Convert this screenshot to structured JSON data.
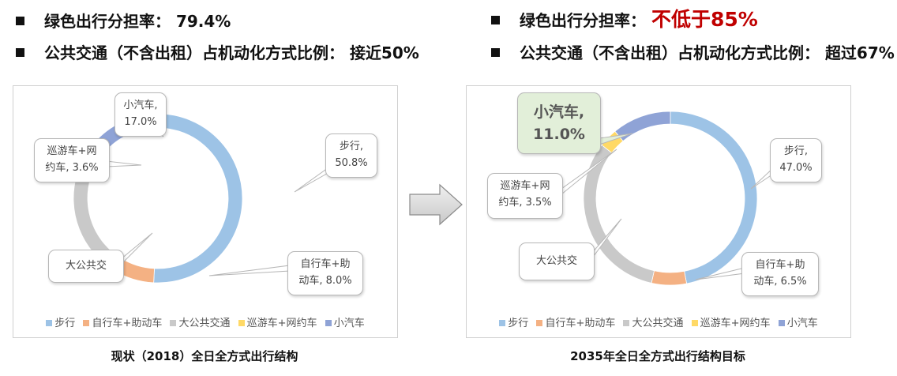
{
  "left": {
    "bullet1": {
      "label": "绿色出行分担率：",
      "value": "79.4%"
    },
    "bullet2": {
      "label": "公共交通（不含出租）占机动化方式比例：",
      "value": "接近50%"
    },
    "caption": "现状（2018）全日全方式出行结构",
    "callouts": {
      "car": [
        "小汽车,",
        "17.0%"
      ],
      "taxi": [
        "巡游车+网",
        "约车, 3.6%"
      ],
      "walk": [
        "步行,",
        "50.8%"
      ],
      "bike": [
        "自行车+助",
        "动车, 8.0%"
      ],
      "bus": [
        "大公共交"
      ]
    }
  },
  "right": {
    "bullet1": {
      "label": "绿色出行分担率：",
      "value": "不低于85%"
    },
    "bullet2": {
      "label": "公共交通（不含出租）占机动化方式比例：",
      "value": "超过67%"
    },
    "caption": "2035年全日全方式出行结构目标",
    "callouts": {
      "car": [
        "小汽车,",
        "11.0%"
      ],
      "taxi": [
        "巡游车+网",
        "约车, 3.5%"
      ],
      "walk": [
        "步行,",
        "47.0%"
      ],
      "bike": [
        "自行车+助",
        "动车, 6.5%"
      ],
      "bus": [
        "大公共交"
      ]
    }
  },
  "legend": [
    "步行",
    "自行车+助动车",
    "大公共交通",
    "巡游车+网约车",
    "小汽车"
  ],
  "colors": {
    "walk": "#9dc3e6",
    "bike": "#f4b183",
    "bus": "#c9c9c9",
    "taxi": "#ffd966",
    "car": "#8fa3d6",
    "highlight": "#c00000",
    "callout_big_bg": "#e2efd9"
  },
  "chart_data": [
    {
      "type": "pie",
      "title": "现状（2018）全日全方式出行结构",
      "categories": [
        "步行",
        "自行车+助动车",
        "大公共交通",
        "巡游车+网约车",
        "小汽车"
      ],
      "values": [
        50.8,
        8.0,
        20.6,
        3.6,
        17.0
      ],
      "labelled": [
        "步行",
        "自行车+助动车",
        "巡游车+网约车",
        "小汽车"
      ],
      "legend_position": "bottom"
    },
    {
      "type": "pie",
      "title": "2035年全日全方式出行结构目标",
      "categories": [
        "步行",
        "自行车+助动车",
        "大公共交通",
        "巡游车+网约车",
        "小汽车"
      ],
      "values": [
        47.0,
        6.5,
        32.0,
        3.5,
        11.0
      ],
      "labelled": [
        "步行",
        "自行车+助动车",
        "巡游车+网约车",
        "小汽车"
      ],
      "legend_position": "bottom"
    }
  ]
}
